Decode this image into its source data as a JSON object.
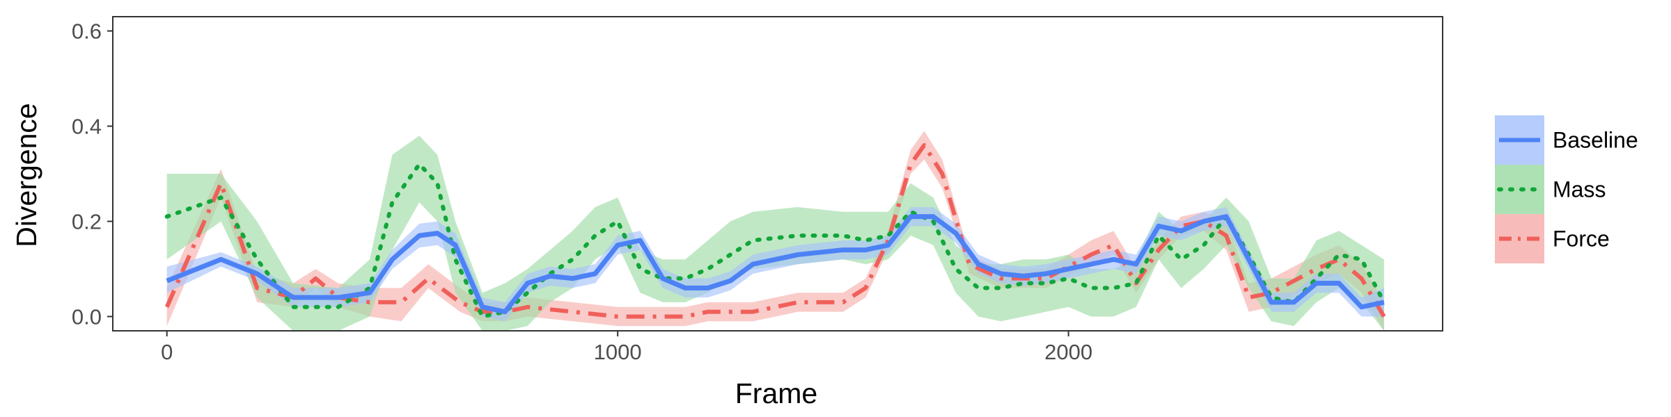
{
  "chart_data": {
    "type": "line",
    "xlabel": "Frame",
    "ylabel": "Divergence",
    "xlim": [
      -120,
      2830
    ],
    "ylim": [
      -0.03,
      0.63
    ],
    "xticks": [
      0,
      1000,
      2000
    ],
    "xtick_labels": [
      "0",
      "1000",
      "2000"
    ],
    "yticks": [
      0.0,
      0.2,
      0.4,
      0.6
    ],
    "ytick_labels": [
      "0.0",
      "0.2",
      "0.4",
      "0.6"
    ],
    "grid": false,
    "legend_position": "right",
    "series": [
      {
        "name": "Baseline",
        "color": "#4d82f5",
        "fill": "#a8c3fb",
        "line_style": "solid",
        "x": [
          0,
          120,
          200,
          280,
          380,
          450,
          500,
          560,
          600,
          640,
          700,
          750,
          800,
          850,
          900,
          950,
          1000,
          1050,
          1100,
          1150,
          1200,
          1250,
          1300,
          1400,
          1500,
          1550,
          1600,
          1650,
          1700,
          1750,
          1800,
          1850,
          1900,
          1950,
          2000,
          2050,
          2100,
          2150,
          2200,
          2250,
          2300,
          2350,
          2400,
          2450,
          2500,
          2550,
          2600,
          2650,
          2700
        ],
        "y": [
          0.075,
          0.12,
          0.09,
          0.04,
          0.04,
          0.05,
          0.12,
          0.17,
          0.175,
          0.15,
          0.02,
          0.01,
          0.07,
          0.085,
          0.08,
          0.09,
          0.15,
          0.16,
          0.08,
          0.06,
          0.06,
          0.075,
          0.11,
          0.13,
          0.14,
          0.14,
          0.15,
          0.21,
          0.21,
          0.175,
          0.11,
          0.09,
          0.085,
          0.09,
          0.1,
          0.11,
          0.12,
          0.11,
          0.19,
          0.18,
          0.2,
          0.21,
          0.12,
          0.03,
          0.03,
          0.07,
          0.07,
          0.02,
          0.03
        ],
        "band_lower": [
          0.05,
          0.105,
          0.075,
          0.02,
          0.02,
          0.03,
          0.1,
          0.145,
          0.15,
          0.125,
          0.0,
          -0.01,
          0.05,
          0.065,
          0.06,
          0.07,
          0.13,
          0.14,
          0.06,
          0.04,
          0.04,
          0.055,
          0.09,
          0.11,
          0.12,
          0.12,
          0.13,
          0.19,
          0.19,
          0.155,
          0.09,
          0.07,
          0.065,
          0.07,
          0.08,
          0.09,
          0.1,
          0.09,
          0.17,
          0.16,
          0.18,
          0.19,
          0.1,
          0.01,
          0.01,
          0.05,
          0.05,
          0.0,
          0.0
        ],
        "band_upper": [
          0.105,
          0.135,
          0.105,
          0.06,
          0.06,
          0.07,
          0.14,
          0.195,
          0.2,
          0.175,
          0.04,
          0.03,
          0.09,
          0.105,
          0.1,
          0.11,
          0.17,
          0.18,
          0.1,
          0.08,
          0.08,
          0.095,
          0.13,
          0.15,
          0.16,
          0.16,
          0.17,
          0.23,
          0.23,
          0.195,
          0.13,
          0.11,
          0.105,
          0.11,
          0.12,
          0.13,
          0.14,
          0.13,
          0.21,
          0.2,
          0.22,
          0.23,
          0.14,
          0.05,
          0.05,
          0.09,
          0.09,
          0.04,
          0.06
        ]
      },
      {
        "name": "Mass",
        "color": "#11a63a",
        "fill": "#9fdca6",
        "line_style": "dotted",
        "x": [
          0,
          120,
          200,
          280,
          380,
          450,
          500,
          560,
          600,
          640,
          700,
          750,
          800,
          850,
          900,
          950,
          1000,
          1050,
          1100,
          1150,
          1200,
          1250,
          1300,
          1400,
          1500,
          1550,
          1600,
          1650,
          1700,
          1750,
          1800,
          1850,
          1900,
          1950,
          2000,
          2050,
          2100,
          2150,
          2200,
          2250,
          2300,
          2350,
          2400,
          2450,
          2500,
          2550,
          2600,
          2650,
          2700
        ],
        "y": [
          0.21,
          0.25,
          0.12,
          0.02,
          0.02,
          0.06,
          0.24,
          0.32,
          0.28,
          0.12,
          0.0,
          0.01,
          0.05,
          0.09,
          0.12,
          0.17,
          0.2,
          0.1,
          0.08,
          0.08,
          0.1,
          0.13,
          0.16,
          0.17,
          0.17,
          0.16,
          0.17,
          0.22,
          0.2,
          0.1,
          0.06,
          0.06,
          0.07,
          0.07,
          0.08,
          0.06,
          0.06,
          0.07,
          0.17,
          0.12,
          0.15,
          0.21,
          0.13,
          0.04,
          0.03,
          0.08,
          0.13,
          0.12,
          0.03
        ],
        "band_lower": [
          0.12,
          0.2,
          0.04,
          -0.03,
          -0.03,
          0.0,
          0.14,
          0.24,
          0.2,
          0.05,
          -0.03,
          -0.03,
          -0.02,
          0.03,
          0.06,
          0.12,
          0.15,
          0.05,
          0.03,
          0.03,
          0.05,
          0.08,
          0.1,
          0.11,
          0.12,
          0.11,
          0.12,
          0.17,
          0.15,
          0.05,
          0.0,
          -0.01,
          0.0,
          0.01,
          0.02,
          0.0,
          0.0,
          0.02,
          0.12,
          0.06,
          0.1,
          0.15,
          0.06,
          -0.01,
          -0.02,
          0.03,
          0.06,
          0.03,
          -0.03
        ],
        "band_upper": [
          0.3,
          0.3,
          0.2,
          0.07,
          0.06,
          0.12,
          0.34,
          0.38,
          0.34,
          0.2,
          0.05,
          0.07,
          0.1,
          0.14,
          0.18,
          0.23,
          0.25,
          0.14,
          0.12,
          0.12,
          0.16,
          0.2,
          0.22,
          0.23,
          0.22,
          0.22,
          0.22,
          0.28,
          0.25,
          0.15,
          0.11,
          0.11,
          0.12,
          0.12,
          0.13,
          0.1,
          0.1,
          0.12,
          0.22,
          0.18,
          0.2,
          0.25,
          0.2,
          0.08,
          0.08,
          0.16,
          0.18,
          0.15,
          0.12
        ]
      },
      {
        "name": "Force",
        "color": "#f0605a",
        "fill": "#f6b0ad",
        "line_style": "dashdot",
        "x": [
          0,
          120,
          200,
          280,
          330,
          380,
          450,
          520,
          580,
          650,
          700,
          750,
          800,
          900,
          1000,
          1100,
          1150,
          1200,
          1300,
          1350,
          1400,
          1500,
          1550,
          1600,
          1650,
          1680,
          1720,
          1780,
          1850,
          1950,
          2050,
          2100,
          2150,
          2200,
          2250,
          2300,
          2350,
          2400,
          2450,
          2550,
          2600,
          2650,
          2700
        ],
        "y": [
          0.02,
          0.28,
          0.06,
          0.04,
          0.08,
          0.04,
          0.03,
          0.03,
          0.08,
          0.03,
          0.01,
          0.01,
          0.02,
          0.01,
          0.0,
          0.0,
          0.0,
          0.01,
          0.01,
          0.02,
          0.03,
          0.03,
          0.06,
          0.16,
          0.32,
          0.36,
          0.3,
          0.11,
          0.08,
          0.08,
          0.13,
          0.15,
          0.07,
          0.14,
          0.19,
          0.2,
          0.17,
          0.04,
          0.05,
          0.1,
          0.12,
          0.08,
          0.0
        ],
        "band_lower": [
          -0.02,
          0.25,
          0.03,
          0.02,
          0.06,
          0.02,
          0.0,
          -0.01,
          0.06,
          0.01,
          -0.01,
          -0.01,
          0.0,
          -0.01,
          -0.02,
          -0.02,
          -0.02,
          -0.01,
          -0.01,
          0.0,
          0.01,
          0.01,
          0.04,
          0.14,
          0.3,
          0.33,
          0.27,
          0.09,
          0.06,
          0.06,
          0.11,
          0.13,
          0.05,
          0.12,
          0.17,
          0.18,
          0.14,
          0.01,
          0.02,
          0.07,
          0.09,
          0.05,
          -0.03
        ],
        "band_upper": [
          0.06,
          0.31,
          0.09,
          0.07,
          0.1,
          0.07,
          0.06,
          0.06,
          0.11,
          0.06,
          0.03,
          0.03,
          0.04,
          0.03,
          0.02,
          0.02,
          0.02,
          0.03,
          0.03,
          0.04,
          0.05,
          0.05,
          0.08,
          0.18,
          0.35,
          0.39,
          0.33,
          0.13,
          0.1,
          0.1,
          0.16,
          0.18,
          0.1,
          0.16,
          0.21,
          0.22,
          0.2,
          0.07,
          0.08,
          0.13,
          0.15,
          0.11,
          0.03
        ]
      }
    ]
  }
}
